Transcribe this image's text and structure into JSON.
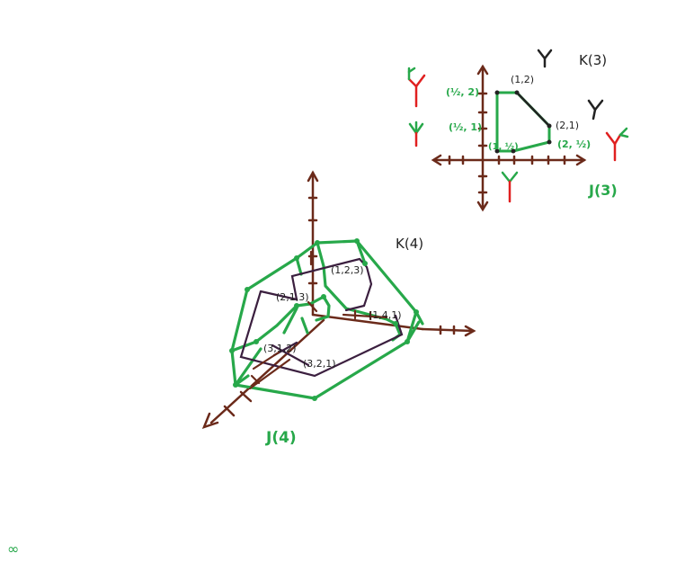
{
  "colors": {
    "axis": "#6b2a1a",
    "green": "#27a84a",
    "black": "#222222",
    "purple": "#3b1f3f",
    "red": "#e02020"
  },
  "small_diagram": {
    "title": "K(3)",
    "caption": "J(3)",
    "labels": {
      "p12": "(1,2)",
      "p21": "(2,1)",
      "p_half_2": "(½, 2)",
      "p_half_1": "(½, 1)",
      "p_1_half": "(1, ½)",
      "p_2_half": "(2, ½)"
    }
  },
  "large_diagram": {
    "title": "K(4)",
    "caption": "J(4)",
    "labels": {
      "l123": "(1,2,3)",
      "l213": "(2,1,3)",
      "l141": "(1,4,1)",
      "l312": "(3,1,2)",
      "l321": "(3,2,1)"
    }
  },
  "corner_mark": "∞"
}
